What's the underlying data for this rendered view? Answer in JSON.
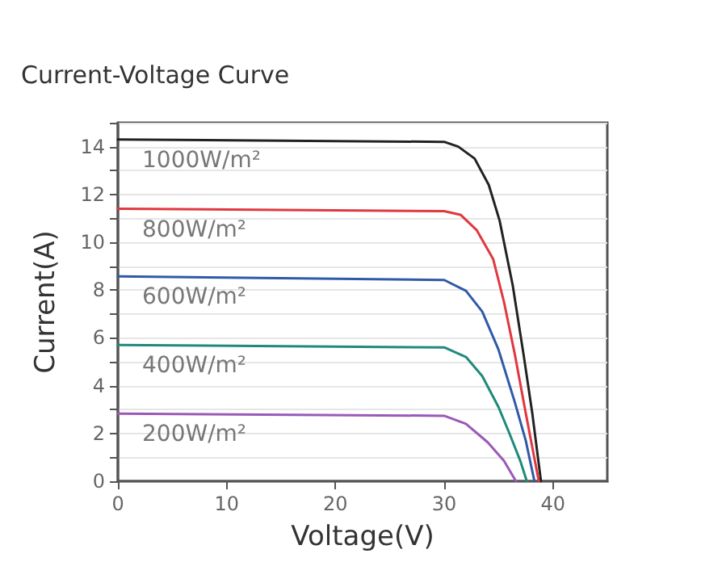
{
  "chart_data": {
    "type": "line",
    "title": "Current-Voltage Curve",
    "xlabel": "Voltage(V)",
    "ylabel": "Current(A)",
    "xlim": [
      0,
      45
    ],
    "xticks": [
      0,
      10,
      20,
      30,
      40
    ],
    "ylim": [
      0,
      15
    ],
    "yticks": [
      0,
      {
        "value": 1,
        "label": null
      },
      2,
      {
        "value": 3,
        "label": null
      },
      4,
      {
        "value": 5,
        "label": null
      },
      6,
      {
        "value": 7,
        "label": null
      },
      8,
      {
        "value": 9,
        "label": null
      },
      10,
      {
        "value": 11,
        "label": null
      },
      12,
      {
        "value": 13,
        "label": null
      },
      14,
      {
        "value": 15,
        "label": null
      }
    ],
    "grid": "y",
    "legend": false,
    "marker": "none",
    "line_style": "solid",
    "series": [
      {
        "name": "1000W/m²",
        "color": "#222222",
        "x": [
          0,
          30,
          31.3,
          32.8,
          34.1,
          35.1,
          36.3,
          37.3,
          38.1,
          38.9
        ],
        "values": [
          14.3,
          14.2,
          14.0,
          13.5,
          12.4,
          10.9,
          8.2,
          5.3,
          2.85,
          0
        ]
      },
      {
        "name": "800W/m²",
        "color": "#e0383e",
        "x": [
          0,
          30,
          31.5,
          33,
          34.5,
          35.5,
          36.5,
          37.5,
          38.7
        ],
        "values": [
          11.4,
          11.3,
          11.15,
          10.5,
          9.3,
          7.5,
          5.3,
          2.85,
          0
        ]
      },
      {
        "name": "600W/m²",
        "color": "#2f5aa8",
        "x": [
          0,
          30,
          32,
          33.5,
          35,
          36.5,
          37.5,
          38.3
        ],
        "values": [
          8.57,
          8.42,
          7.97,
          7.1,
          5.5,
          3.3,
          1.7,
          0
        ]
      },
      {
        "name": "400W/m²",
        "color": "#1f8a7a",
        "x": [
          0,
          30,
          32,
          33.5,
          35,
          36,
          37,
          37.6
        ],
        "values": [
          5.7,
          5.6,
          5.2,
          4.4,
          3.1,
          2.0,
          0.85,
          0
        ]
      },
      {
        "name": "200W/m²",
        "color": "#9b59b6",
        "x": [
          0,
          30,
          32,
          34,
          35.5,
          36.6
        ],
        "values": [
          2.83,
          2.74,
          2.4,
          1.63,
          0.85,
          0
        ]
      }
    ]
  }
}
